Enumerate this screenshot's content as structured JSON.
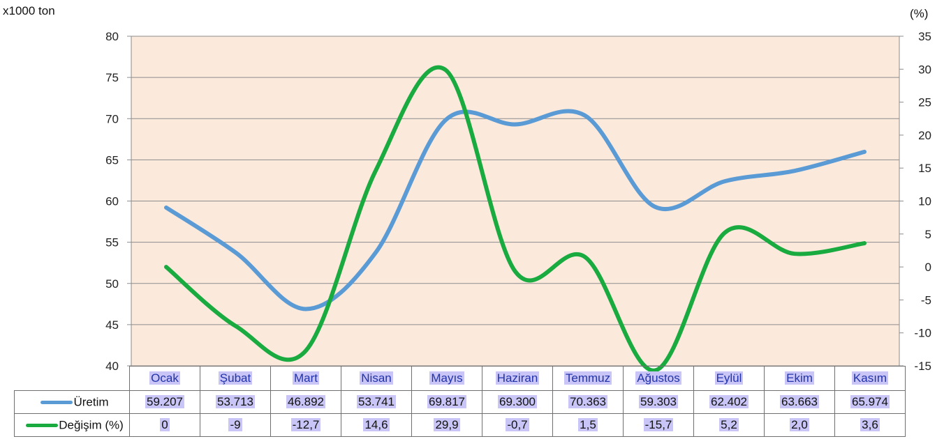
{
  "chart_data": {
    "type": "line",
    "categories": [
      "Ocak",
      "Şubat",
      "Mart",
      "Nisan",
      "Mayıs",
      "Haziran",
      "Temmuz",
      "Ağustos",
      "Eylül",
      "Ekim",
      "Kasım"
    ],
    "ylabel_left": "x1000 ton",
    "ylabel_right": "(%)",
    "ylim_left": [
      40,
      80
    ],
    "yticks_left": [
      40,
      45,
      50,
      55,
      60,
      65,
      70,
      75,
      80
    ],
    "ylim_right": [
      -15,
      35
    ],
    "yticks_right": [
      -15,
      -10,
      -5,
      0,
      5,
      10,
      15,
      20,
      25,
      30,
      35
    ],
    "grid": true,
    "plot_background": "#fbe9dc",
    "series": [
      {
        "name": "Üretim",
        "axis": "left",
        "color": "#5b9bd5",
        "values": [
          59.207,
          53.713,
          46.892,
          53.741,
          69.817,
          69.3,
          70.363,
          59.303,
          62.402,
          63.663,
          65.974
        ],
        "labels": [
          "59.207",
          "53.713",
          "46.892",
          "53.741",
          "69.817",
          "69.300",
          "70.363",
          "59.303",
          "62.402",
          "63.663",
          "65.974"
        ]
      },
      {
        "name": "Değişim (%)",
        "axis": "right",
        "color": "#1aab40",
        "values": [
          0,
          -9,
          -12.7,
          14.6,
          29.9,
          -0.7,
          1.5,
          -15.7,
          5.2,
          2.0,
          3.6
        ],
        "labels": [
          "0",
          "-9",
          "-12,7",
          "14,6",
          "29,9",
          "-0,7",
          "1,5",
          "-15,7",
          "5,2",
          "2,0",
          "3,6"
        ]
      }
    ]
  }
}
